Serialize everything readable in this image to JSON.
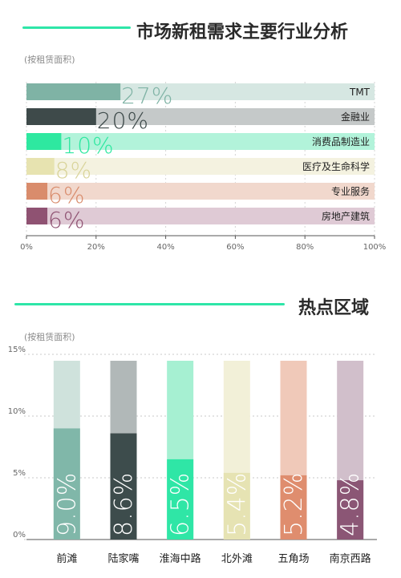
{
  "sections": [
    {
      "title": "市场新租需求主要行业分析",
      "sub_label": "(按租赁面积)"
    },
    {
      "title": "热点区域",
      "sub_label": "(按租赁面积)"
    }
  ],
  "colors": {
    "accent_line": "#2ee6a8",
    "axis": "#555555",
    "tick_text": "#666666"
  },
  "chart_data": [
    {
      "type": "bar",
      "orientation": "horizontal",
      "categories": [
        "TMT",
        "金融业",
        "消费品制造业",
        "医疗及生命科学",
        "专业服务",
        "房地产建筑"
      ],
      "values": [
        27,
        20,
        10,
        8,
        6,
        6
      ],
      "value_labels": [
        "27%",
        "20%",
        "10%",
        "8%",
        "6%",
        "6%"
      ],
      "colors": [
        "#7fb3a5",
        "#3e4a4a",
        "#2ee8a0",
        "#e7e3b0",
        "#d98c6c",
        "#8f5272"
      ],
      "track_colors": [
        "#d6e7e2",
        "#c5c9c9",
        "#b2f3da",
        "#f4f2e0",
        "#f1d8cd",
        "#dfcad5"
      ],
      "value_label_colors": [
        "#7fb3a5",
        "#3e4a4a",
        "#2ee8a0",
        "#d9d49a",
        "#d98c6c",
        "#8f5272"
      ],
      "xlim": [
        0,
        100
      ],
      "x_ticks": [
        "0%",
        "20%",
        "40%",
        "60%",
        "80%",
        "100%"
      ],
      "grid": true
    },
    {
      "type": "bar",
      "orientation": "vertical",
      "categories": [
        "前滩",
        "陆家嘴",
        "淮海中路",
        "北外滩",
        "五角场",
        "南京西路"
      ],
      "values": [
        9.0,
        8.6,
        6.5,
        5.4,
        5.2,
        4.8
      ],
      "value_labels": [
        "9.0%",
        "8.6%",
        "6.5%",
        "5.4%",
        "5.2%",
        "4.8%"
      ],
      "colors": [
        "#80b7a9",
        "#3d4c4c",
        "#2fe6a6",
        "#e6e3b3",
        "#df8d6e",
        "#8b5675"
      ],
      "track_colors": [
        "#cfe2dc",
        "#b1b8b8",
        "#a6f0d2",
        "#f2f0d8",
        "#f0c9b9",
        "#d1bfcb"
      ],
      "ylim": [
        0,
        15
      ],
      "y_ticks": [
        "0%",
        "5%",
        "10%",
        "15%"
      ],
      "grid": true
    }
  ]
}
